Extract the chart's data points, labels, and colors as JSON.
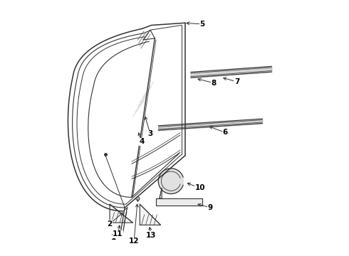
{
  "bg_color": "#ffffff",
  "lc": "#333333",
  "lw": 1.0,
  "lwt": 0.6,
  "figsize": [
    4.9,
    3.6
  ],
  "dpi": 100,
  "xlim": [
    -0.05,
    1.05
  ],
  "ylim": [
    -0.05,
    1.05
  ]
}
